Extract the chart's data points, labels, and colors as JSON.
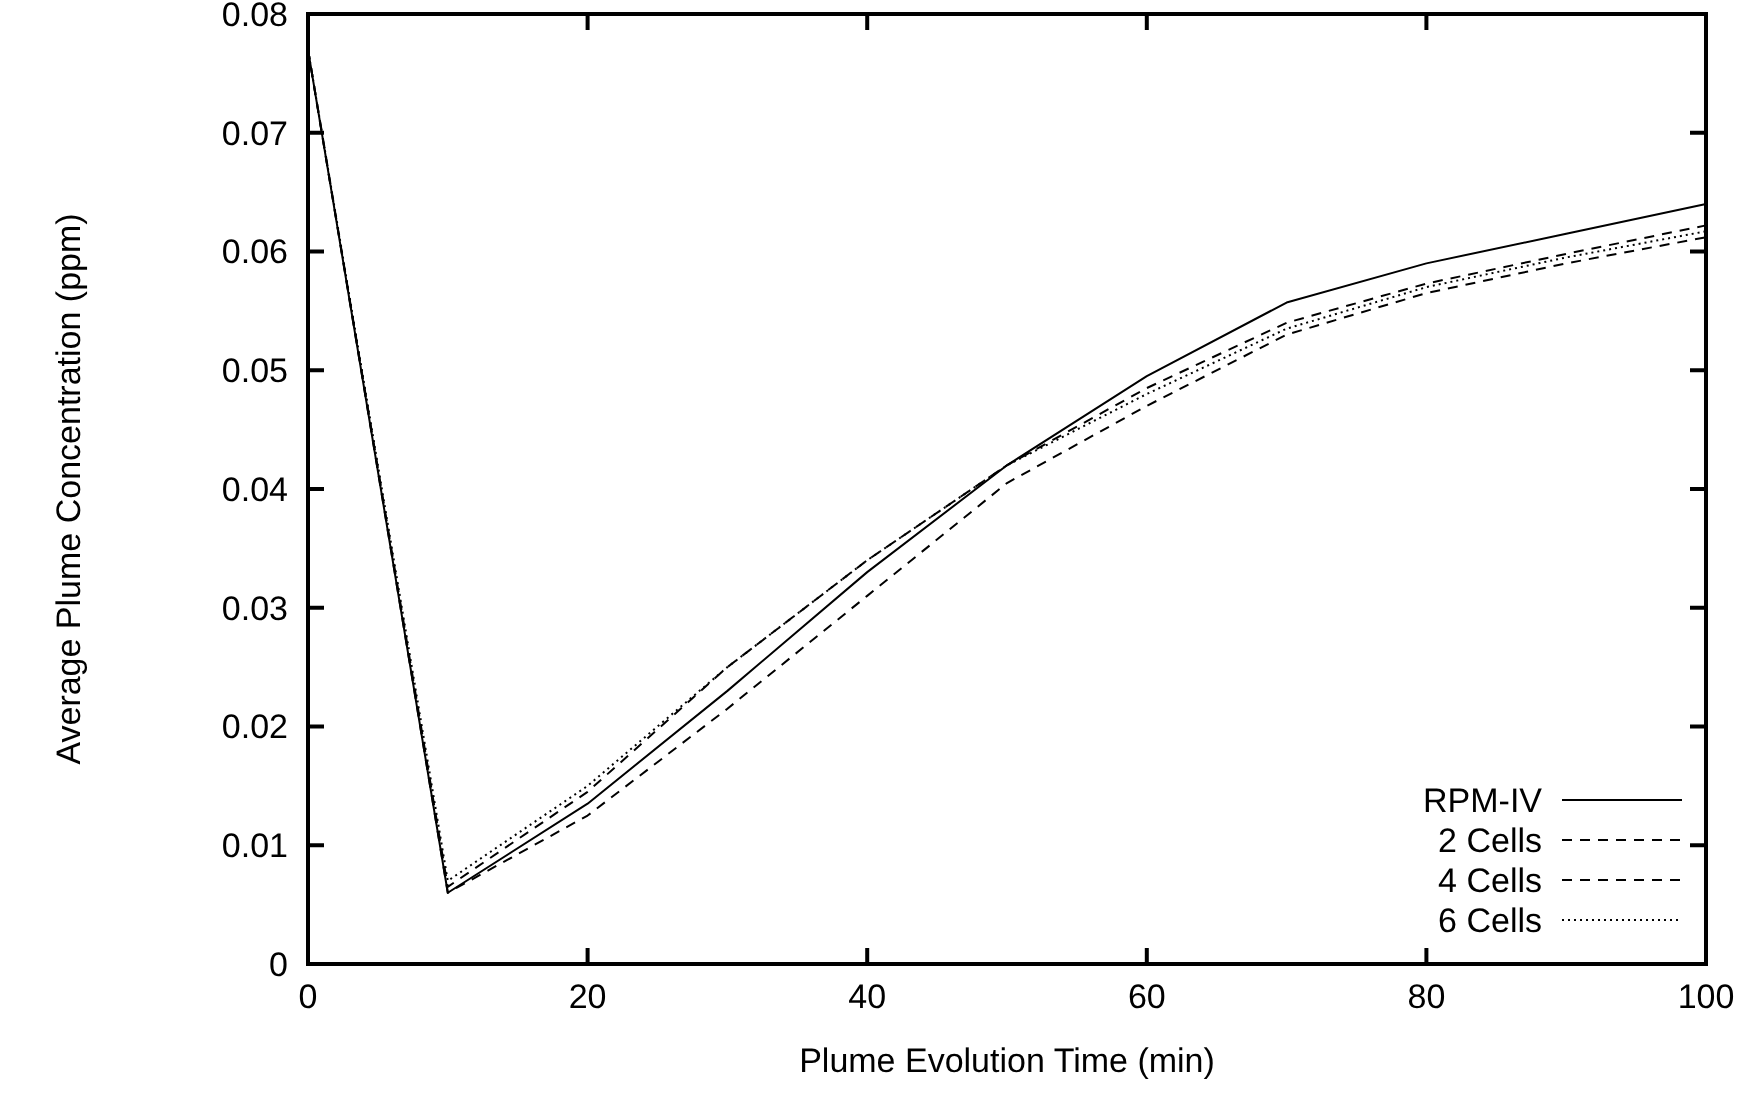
{
  "chart_data": {
    "type": "line",
    "xlabel": "Plume Evolution Time (min)",
    "ylabel": "Average Plume Concentration (ppm)",
    "x": [
      0,
      10,
      20,
      30,
      40,
      50,
      60,
      70,
      80,
      90,
      100
    ],
    "xlim": [
      0,
      100
    ],
    "xticks": [
      0,
      20,
      40,
      60,
      80,
      100
    ],
    "ylim": [
      0,
      0.08
    ],
    "yticks": [
      0,
      0.01,
      0.02,
      0.03,
      0.04,
      0.05,
      0.06,
      0.07,
      0.08
    ],
    "grid": false,
    "legend": "bottom right",
    "marker": "none",
    "series": [
      {
        "name": "RPM-IV",
        "color": "#000000",
        "line_style": "solid",
        "values": [
          0.077,
          0.006,
          0.0135,
          0.023,
          0.033,
          0.042,
          0.0495,
          0.0557,
          0.059,
          0.0615,
          0.064
        ]
      },
      {
        "name": "2 Cells",
        "color": "#000000",
        "line_style": "dashed",
        "values": [
          0.077,
          0.006,
          0.0125,
          0.0215,
          0.031,
          0.0405,
          0.047,
          0.053,
          0.0565,
          0.059,
          0.0612
        ]
      },
      {
        "name": "4 Cells",
        "color": "#000000",
        "line_style": "dashed",
        "values": [
          0.077,
          0.0065,
          0.0145,
          0.025,
          0.034,
          0.042,
          0.0485,
          0.054,
          0.0573,
          0.0598,
          0.0622
        ]
      },
      {
        "name": "6 Cells",
        "color": "#000000",
        "line_style": "dotted",
        "values": [
          0.077,
          0.007,
          0.015,
          0.025,
          0.034,
          0.042,
          0.048,
          0.0535,
          0.057,
          0.0595,
          0.0617
        ]
      }
    ]
  }
}
